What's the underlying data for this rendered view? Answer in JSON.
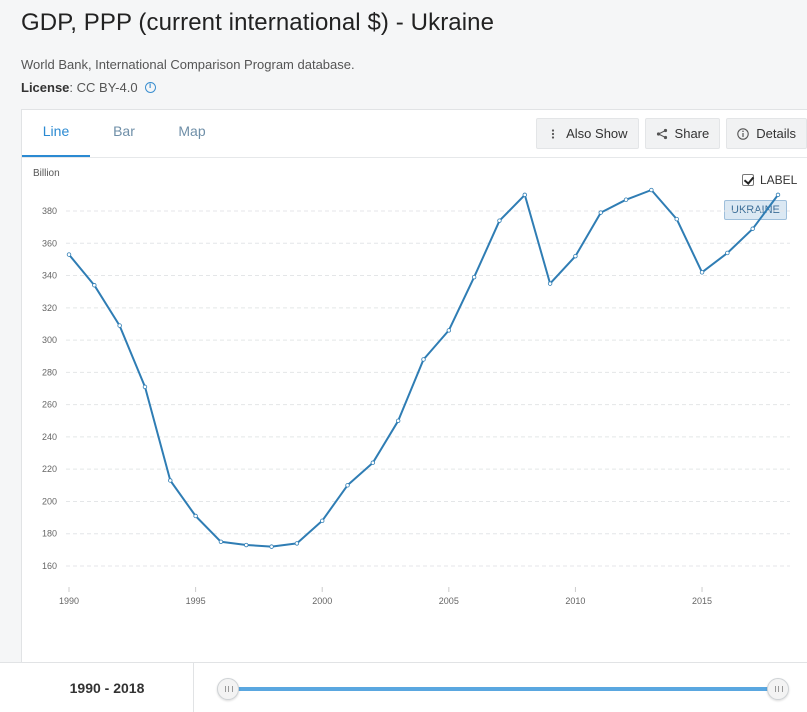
{
  "page": {
    "title": "GDP, PPP (current international $) - Ukraine",
    "source": "World Bank, International Comparison Program database.",
    "license_label": "License",
    "license_value": " : CC BY-4.0"
  },
  "tabs": [
    {
      "label": "Line",
      "active": true
    },
    {
      "label": "Bar",
      "active": false
    },
    {
      "label": "Map",
      "active": false
    }
  ],
  "toolbar": {
    "also_show": "Also Show",
    "share": "Share",
    "details": "Details"
  },
  "legend": {
    "label_toggle": "LABEL",
    "series_tag": "UKRAINE"
  },
  "range": {
    "text": "1990 - 2018",
    "start": 1990,
    "end": 2018
  },
  "colors": {
    "line": "#2f7db4",
    "accent": "#2b8ad2",
    "grid": "#e4e6e8",
    "slider": "#5aa7e0"
  },
  "chart_data": {
    "type": "line",
    "title": "GDP, PPP (current international $) - Ukraine",
    "ylabel": "Billion",
    "xlabel": "",
    "ylim": [
      150,
      395
    ],
    "xlim": [
      1990,
      2018
    ],
    "yticks": [
      160,
      180,
      200,
      220,
      240,
      260,
      280,
      300,
      320,
      340,
      360,
      380
    ],
    "xticks": [
      1990,
      1995,
      2000,
      2005,
      2010,
      2015
    ],
    "grid": true,
    "series": [
      {
        "name": "UKRAINE",
        "x": [
          1990,
          1991,
          1992,
          1993,
          1994,
          1995,
          1996,
          1997,
          1998,
          1999,
          2000,
          2001,
          2002,
          2003,
          2004,
          2005,
          2006,
          2007,
          2008,
          2009,
          2010,
          2011,
          2012,
          2013,
          2014,
          2015,
          2016,
          2017,
          2018
        ],
        "values": [
          353,
          334,
          309,
          271,
          213,
          191,
          175,
          173,
          172,
          174,
          188,
          210,
          224,
          250,
          288,
          306,
          339,
          374,
          390,
          335,
          352,
          379,
          387,
          393,
          375,
          342,
          354,
          369,
          390
        ]
      }
    ]
  }
}
